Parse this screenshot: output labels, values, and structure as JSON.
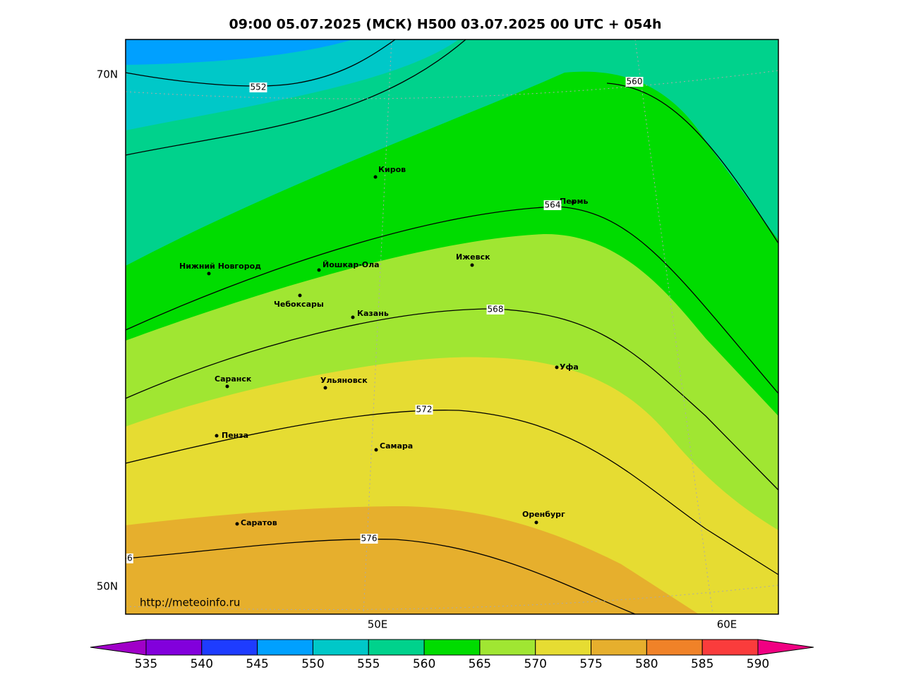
{
  "title": "09:00 05.07.2025 (МСК) H500  03.07.2025 00 UTC + 054h",
  "lat_labels": [
    "70N",
    "50N"
  ],
  "lon_labels": [
    "50E",
    "60E"
  ],
  "cities": [
    "Киров",
    "Пермь",
    "Нижний Новгород",
    "Йошкар-Ола",
    "Ижевск",
    "Чебоксары",
    "Казань",
    "Саранск",
    "Ульяновск",
    "Уфа",
    "Пенза",
    "Самара",
    "Оренбург",
    "Саратов"
  ],
  "contour_labels": [
    "552",
    "560",
    "564",
    "568",
    "572",
    "576",
    "6"
  ],
  "credit": "http://meteoinfo.ru",
  "colorbar": {
    "labels": [
      535,
      540,
      545,
      550,
      555,
      560,
      565,
      570,
      575,
      580,
      585,
      590
    ],
    "colors": [
      "#a000c8",
      "#8200dc",
      "#1e3cff",
      "#00a0ff",
      "#00c8c8",
      "#00d28c",
      "#00dc00",
      "#a0e632",
      "#e6dc32",
      "#e6af2d",
      "#f08228",
      "#fa3c3c",
      "#f00082"
    ]
  }
}
